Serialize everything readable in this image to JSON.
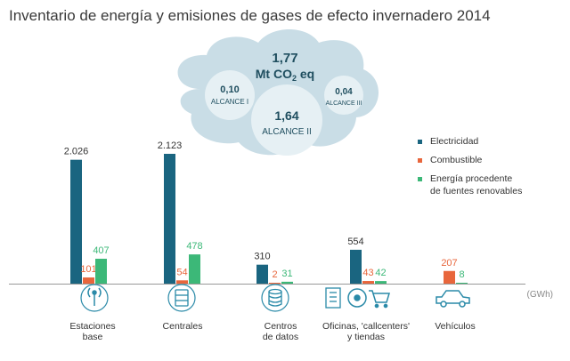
{
  "title": "Inventario de energía y emisiones de gases de efecto invernadero 2014",
  "cloud": {
    "total_value": "1,77",
    "total_unit": "Mt CO",
    "total_sub": "2",
    "total_suffix": " eq",
    "alcance1_value": "0,10",
    "alcance1_label": "ALCANCE I",
    "alcance2_value": "1,64",
    "alcance2_label": "ALCANCE II",
    "alcance3_value": "0,04",
    "alcance3_label": "ALCANCE III"
  },
  "colors": {
    "electricidad": "#1a6580",
    "combustible": "#e8663c",
    "renovable": "#3cb878",
    "axis": "#999999",
    "icon": "#2a8aa8"
  },
  "chart_data": {
    "type": "bar",
    "title": "Inventario de energía y emisiones de gases de efecto invernadero 2014",
    "unit": "(GWh)",
    "categories": [
      [
        "Estaciones",
        "base"
      ],
      [
        "Centrales"
      ],
      [
        "Centros",
        "de datos"
      ],
      [
        "Oficinas, 'callcenters'",
        "y tiendas"
      ],
      [
        "Vehículos"
      ]
    ],
    "series": [
      {
        "name": "Electricidad",
        "color_key": "electricidad",
        "values": [
          2026,
          2123,
          310,
          554,
          null
        ],
        "labels": [
          "2.026",
          "2.123",
          "310",
          "554",
          ""
        ]
      },
      {
        "name": "Combustible",
        "color_key": "combustible",
        "values": [
          101,
          54,
          2,
          43,
          207
        ],
        "labels": [
          "101",
          "54",
          "2",
          "43",
          "207"
        ]
      },
      {
        "name": "Energía procedente de fuentes renovables",
        "color_key": "renovable",
        "values": [
          407,
          478,
          31,
          42,
          8
        ],
        "labels": [
          "407",
          "478",
          "31",
          "42",
          "8"
        ]
      }
    ],
    "legend": [
      [
        "Electricidad"
      ],
      [
        "Combustible"
      ],
      [
        "Energía procedente",
        "de fuentes renovables"
      ]
    ],
    "ylim": [
      0,
      2200
    ]
  }
}
